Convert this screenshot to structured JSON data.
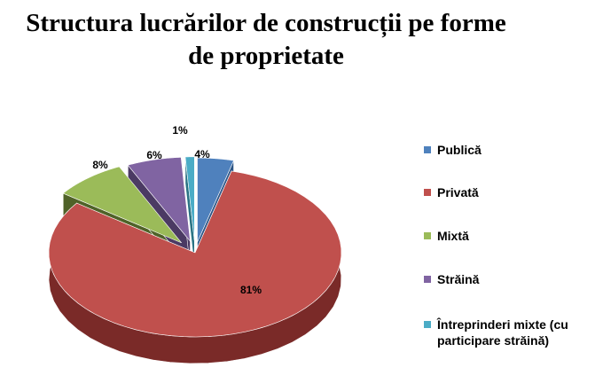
{
  "chart_data": {
    "type": "pie",
    "style": "3d-exploded",
    "title": "Structura lucrărilor de construcții pe forme de proprietate",
    "legend_position": "right",
    "categories": [
      "Publică",
      "Privată",
      "Mixtă",
      "Străină",
      "Întreprinderi mixte (cu participare străină)"
    ],
    "values": [
      4,
      81,
      8,
      6,
      1
    ],
    "value_labels": [
      "4%",
      "81%",
      "8%",
      "6%",
      "1%"
    ],
    "colors": [
      "#4F81BD",
      "#C0504D",
      "#9BBB59",
      "#8064A2",
      "#4BACC6"
    ],
    "side_colors": [
      "#2C5586",
      "#7A2A28",
      "#4F6228",
      "#4B3A63",
      "#2A7384"
    ]
  }
}
